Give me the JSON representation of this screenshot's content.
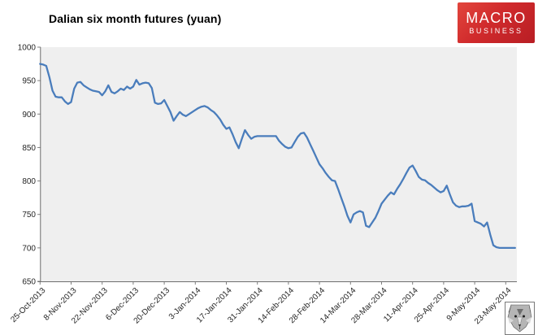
{
  "logo": {
    "macro": "MACRO",
    "business": "BUSINESS",
    "bg_color": "#cf2a2c",
    "text_color": "#ffffff"
  },
  "chart_data": {
    "type": "line",
    "title": "Dalian six month futures (yuan)",
    "xlabel": "",
    "ylabel": "",
    "ylim": [
      650,
      1000
    ],
    "yticks": [
      1000,
      950,
      900,
      850,
      800,
      750,
      700,
      650
    ],
    "xtick_labels": [
      "25-Oct-2013",
      "8-Nov-2013",
      "22-Nov-2013",
      "6-Dec-2013",
      "20-Dec-2013",
      "3-Jan-2014",
      "17-Jan-2014",
      "31-Jan-2014",
      "14-Feb-2014",
      "28-Feb-2014",
      "14-Mar-2014",
      "28-Mar-2014",
      "11-Apr-2014",
      "25-Apr-2014",
      "9-May-2014",
      "23-May-2014"
    ],
    "points_per_xtick": 10,
    "frequency": "daily",
    "grid": "off",
    "legend": "none",
    "line_color": "#4a7dbc",
    "plot_bg": "#efefef",
    "axis_color": "#6e6e6e",
    "tick_color": "#808080",
    "label_color": "#262626",
    "values": [
      975,
      974,
      972,
      955,
      935,
      926,
      925,
      925,
      919,
      915,
      918,
      938,
      947,
      948,
      943,
      940,
      937,
      935,
      934,
      933,
      928,
      934,
      943,
      933,
      931,
      934,
      938,
      936,
      941,
      938,
      941,
      951,
      944,
      946,
      947,
      946,
      939,
      917,
      915,
      916,
      921,
      912,
      903,
      890,
      897,
      903,
      899,
      897,
      900,
      903,
      906,
      909,
      911,
      912,
      910,
      906,
      903,
      898,
      892,
      884,
      878,
      880,
      870,
      858,
      849,
      863,
      876,
      869,
      863,
      866,
      867,
      867,
      867,
      867,
      867,
      867,
      867,
      860,
      855,
      851,
      849,
      850,
      858,
      866,
      871,
      872,
      865,
      855,
      845,
      835,
      825,
      819,
      812,
      806,
      801,
      800,
      788,
      775,
      762,
      748,
      738,
      750,
      753,
      755,
      753,
      733,
      731,
      738,
      745,
      755,
      766,
      772,
      778,
      783,
      780,
      788,
      795,
      803,
      812,
      820,
      823,
      815,
      806,
      802,
      801,
      797,
      794,
      790,
      786,
      783,
      785,
      793,
      780,
      768,
      763,
      761,
      762,
      762,
      763,
      766,
      740,
      738,
      736,
      732,
      738,
      720,
      704,
      701,
      700,
      700,
      700,
      700,
      700,
      700
    ]
  }
}
